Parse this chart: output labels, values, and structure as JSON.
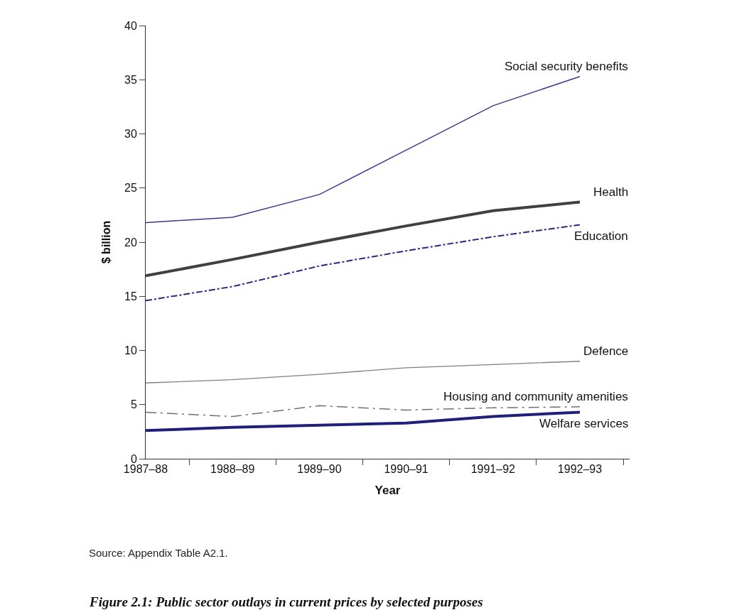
{
  "chart_data": {
    "type": "line",
    "title": "Figure 2.1: Public sector outlays in current prices by selected purposes",
    "xlabel": "Year",
    "ylabel": "$ billion",
    "categories": [
      "1987–88",
      "1988–89",
      "1989–90",
      "1990–91",
      "1991–92",
      "1992–93"
    ],
    "series": [
      {
        "name": "Social security benefits",
        "color": "#3a3a8c",
        "line_style": "solid",
        "values": [
          21.8,
          22.3,
          24.4,
          28.5,
          32.6,
          35.3
        ]
      },
      {
        "name": "Health",
        "color": "#404040",
        "line_style": "solid",
        "values": [
          16.9,
          18.4,
          20.0,
          21.5,
          22.9,
          23.7
        ]
      },
      {
        "name": "Education",
        "color": "#2a2a80",
        "line_style": "dashdot",
        "values": [
          14.6,
          15.9,
          17.8,
          19.2,
          20.5,
          21.6
        ]
      },
      {
        "name": "Defence",
        "color": "#808080",
        "line_style": "solid",
        "values": [
          7.0,
          7.3,
          7.8,
          8.4,
          8.7,
          9.0
        ]
      },
      {
        "name": "Housing and community amenities",
        "color": "#707070",
        "line_style": "longdashdot",
        "values": [
          4.3,
          3.9,
          4.9,
          4.5,
          4.7,
          4.8
        ]
      },
      {
        "name": "Welfare services",
        "color": "#20207a",
        "line_style": "solid",
        "values": [
          2.6,
          2.9,
          3.1,
          3.3,
          3.9,
          4.3
        ]
      }
    ],
    "ylim": [
      0,
      40
    ],
    "yticks": [
      0,
      5,
      10,
      15,
      20,
      25,
      30,
      35,
      40
    ],
    "grid": false,
    "legend": false,
    "marker": "none",
    "annotations": [
      "Source: Appendix Table A2.1."
    ]
  }
}
